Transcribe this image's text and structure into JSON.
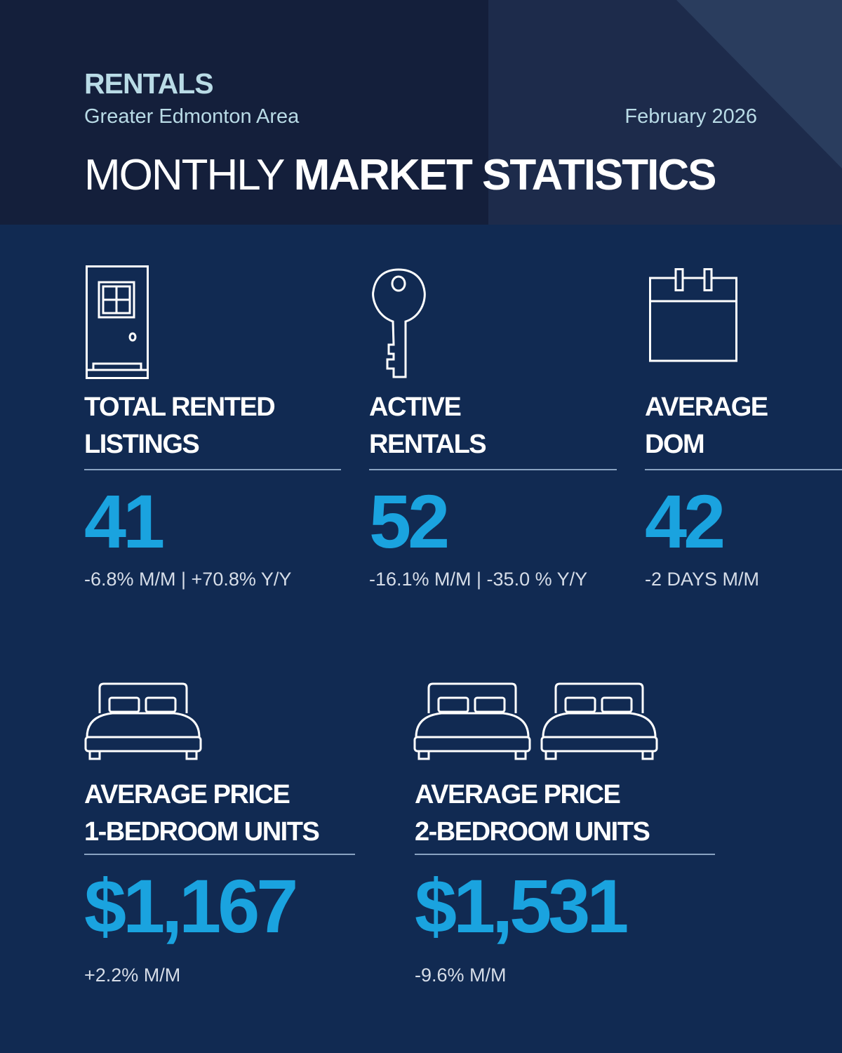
{
  "header": {
    "category": "RENTALS",
    "area": "Greater Edmonton Area",
    "date": "February 2026",
    "title_light": "MONTHLY",
    "title_bold": "MARKET STATISTICS"
  },
  "colors": {
    "accent": "#1aa3df",
    "background": "#112a52",
    "header": "#141f3b",
    "subtitle": "#b9dbe6"
  },
  "stats": [
    {
      "icon": "door-icon",
      "label_1": "TOTAL RENTED",
      "label_2": "LISTINGS",
      "value": "41",
      "change": "-6.8% M/M | +70.8% Y/Y"
    },
    {
      "icon": "key-icon",
      "label_1": "ACTIVE",
      "label_2": "RENTALS",
      "value": "52",
      "change": "-16.1% M/M | -35.0 % Y/Y"
    },
    {
      "icon": "calendar-icon",
      "label_1": "AVERAGE",
      "label_2": "DOM",
      "value": "42",
      "change": "-2 DAYS M/M"
    },
    {
      "icon": "bed-icon",
      "label_1": "AVERAGE PRICE",
      "label_2": "1-BEDROOM UNITS",
      "value": "$1,167",
      "change": "+2.2% M/M"
    },
    {
      "icon": "two-beds-icon",
      "label_1": "AVERAGE PRICE",
      "label_2": "2-BEDROOM UNITS",
      "value": "$1,531",
      "change": "-9.6% M/M"
    }
  ]
}
